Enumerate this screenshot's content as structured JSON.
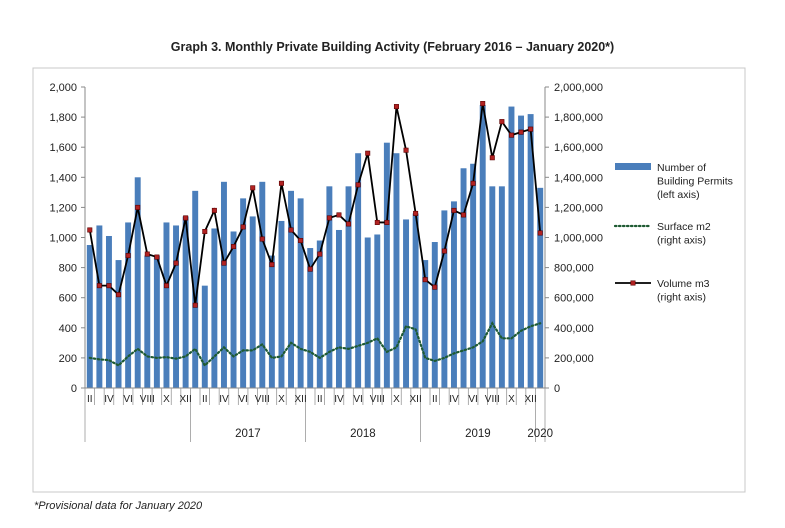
{
  "chart_data": {
    "type": "bar",
    "title": "Graph 3. Monthly Private Building Activity (February 2016 – January 2020*)",
    "footnote": "*Provisional data for January 2020",
    "left_axis": {
      "ylim": [
        0,
        2000
      ],
      "ticks": [
        "0",
        "200",
        "400",
        "600",
        "800",
        "1,000",
        "1,200",
        "1,400",
        "1,600",
        "1,800",
        "2,000"
      ]
    },
    "right_axis": {
      "ylim": [
        0,
        2000000
      ],
      "ticks": [
        "0",
        "200,000",
        "400,000",
        "600,000",
        "800,000",
        "1,000,000",
        "1,200,000",
        "1,400,000",
        "1,600,000",
        "1,800,000",
        "2,000,000"
      ]
    },
    "month_labels": [
      "II",
      "",
      "IV",
      "",
      "VI",
      "",
      "VIII",
      "",
      "X",
      "",
      "XII",
      "",
      "II",
      "",
      "IV",
      "",
      "VI",
      "",
      "VIII",
      "",
      "X",
      "",
      "XII",
      "",
      "II",
      "",
      "IV",
      "",
      "VI",
      "",
      "VIII",
      "",
      "X",
      "",
      "XII",
      "",
      "II",
      "",
      "IV",
      "",
      "VI",
      "",
      "VIII",
      "",
      "X",
      "",
      "XII",
      ""
    ],
    "year_labels": [
      "2017",
      "2018",
      "2019",
      "2020"
    ],
    "series": [
      {
        "name": "Number of Building Permits (left axis)",
        "axis": "left",
        "style": "bar",
        "color": "#4a7ebb",
        "values": [
          950,
          1080,
          1010,
          850,
          1100,
          1400,
          880,
          880,
          1100,
          1080,
          1140,
          1310,
          680,
          1060,
          1370,
          1040,
          1260,
          1140,
          1370,
          880,
          1110,
          1310,
          1260,
          930,
          980,
          1340,
          1050,
          1340,
          1560,
          1000,
          1020,
          1630,
          1560,
          1120,
          1160,
          850,
          970,
          1180,
          1240,
          1460,
          1490,
          1880,
          1340,
          1340,
          1870,
          1810,
          1820,
          1330
        ]
      },
      {
        "name": "Surface m2 (right axis)",
        "axis": "right",
        "style": "dotted-line",
        "color": "#1e5a32",
        "values": [
          200000,
          190000,
          185000,
          150000,
          210000,
          260000,
          210000,
          200000,
          205000,
          195000,
          210000,
          260000,
          150000,
          210000,
          270000,
          210000,
          250000,
          250000,
          290000,
          200000,
          210000,
          300000,
          260000,
          240000,
          200000,
          240000,
          270000,
          260000,
          280000,
          300000,
          330000,
          240000,
          270000,
          410000,
          390000,
          200000,
          180000,
          200000,
          230000,
          250000,
          270000,
          310000,
          430000,
          330000,
          330000,
          380000,
          410000,
          430000
        ]
      },
      {
        "name": "Volume m3 (right axis)",
        "axis": "right",
        "style": "line-markers",
        "color": "#000000",
        "marker_color": "#b22222",
        "values": [
          1050000,
          680000,
          680000,
          620000,
          880000,
          1200000,
          890000,
          870000,
          680000,
          830000,
          1130000,
          550000,
          1040000,
          1180000,
          830000,
          940000,
          1070000,
          1330000,
          990000,
          820000,
          1360000,
          1050000,
          980000,
          790000,
          890000,
          1130000,
          1150000,
          1090000,
          1350000,
          1560000,
          1100000,
          1100000,
          1870000,
          1580000,
          1160000,
          720000,
          670000,
          910000,
          1180000,
          1150000,
          1360000,
          1890000,
          1530000,
          1770000,
          1680000,
          1700000,
          1720000,
          1030000
        ]
      }
    ],
    "legend": [
      {
        "label": "Number of Building Permits (left axis)",
        "lines": [
          "Number of",
          "Building Permits",
          "(left axis)"
        ]
      },
      {
        "label": "Surface m2 (right axis)",
        "lines": [
          "Surface m2",
          "(right axis)"
        ]
      },
      {
        "label": "Volume m3 (right axis)",
        "lines": [
          "Volume m3",
          "(right axis)"
        ]
      }
    ],
    "legend_position": "right",
    "grid": false
  }
}
